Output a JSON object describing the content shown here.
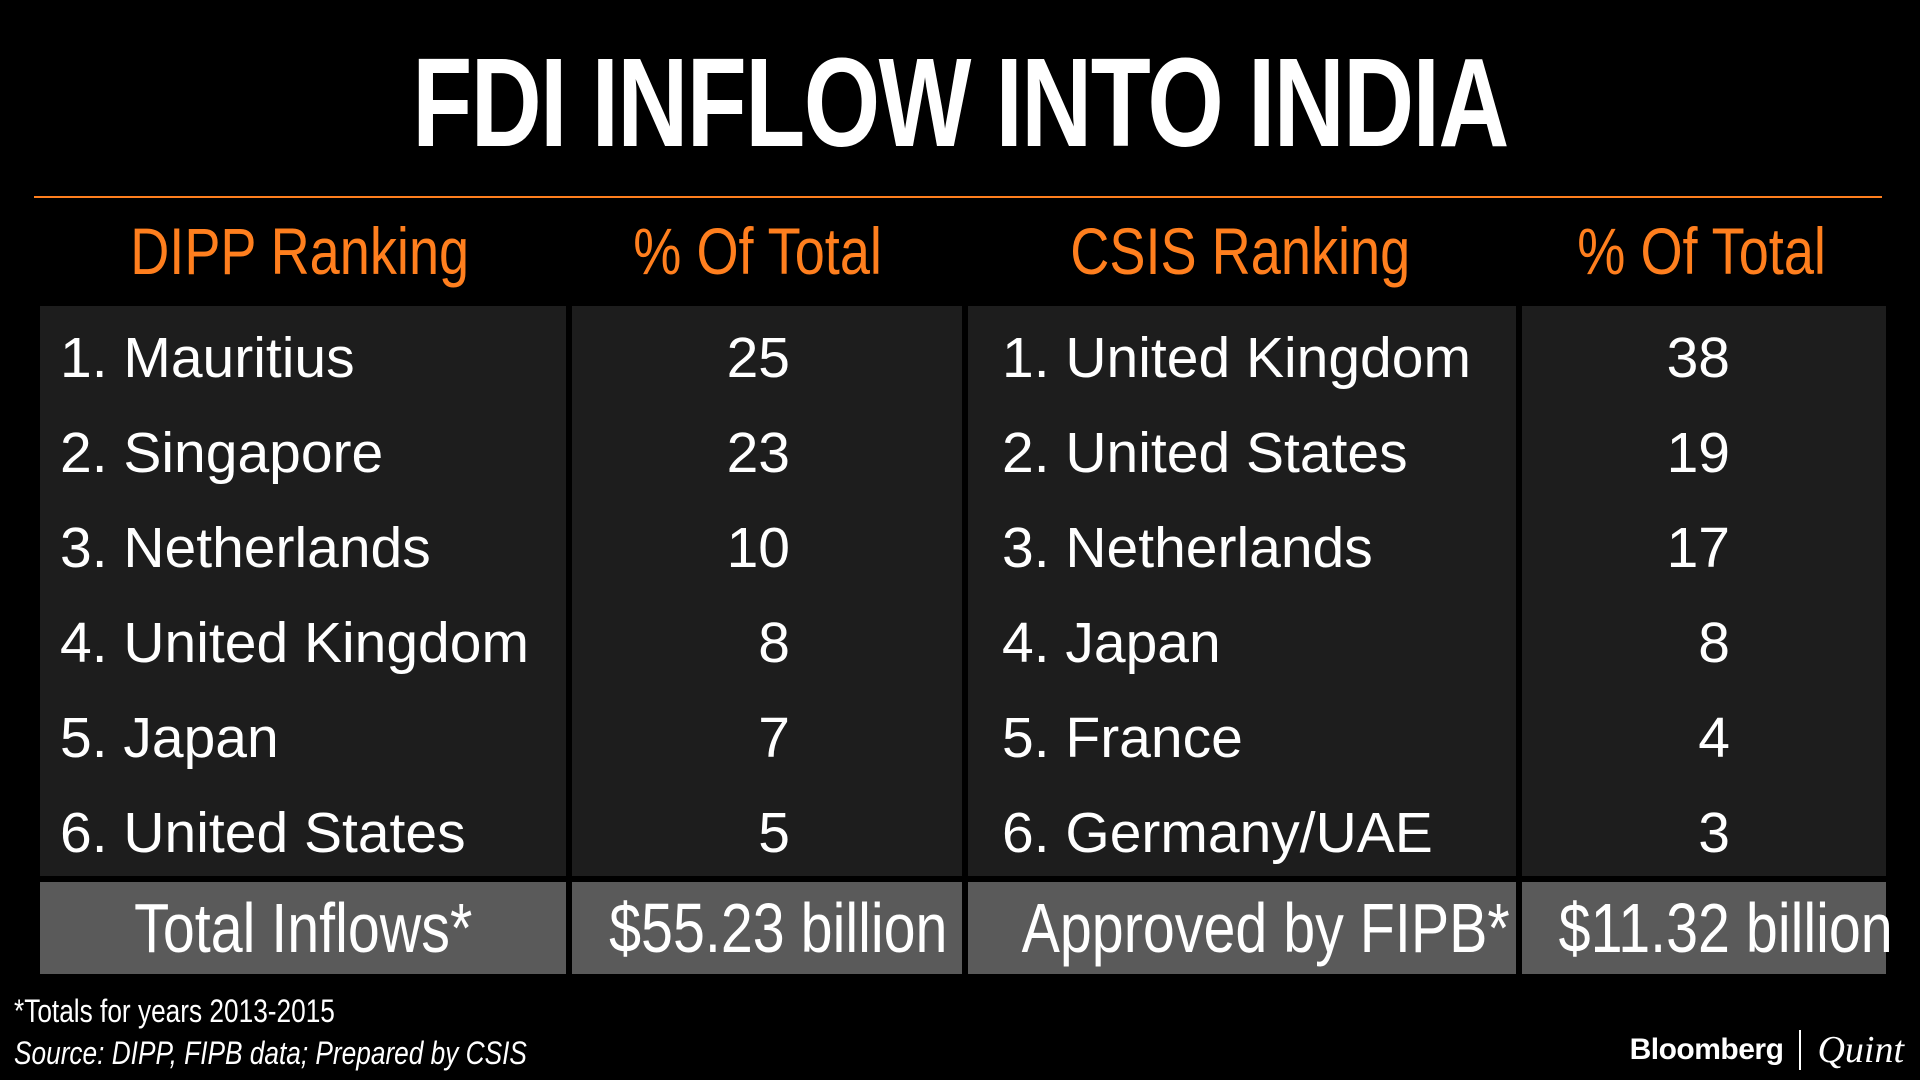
{
  "title": "FDI INFLOW INTO INDIA",
  "colors": {
    "accent": "#ff7f1e",
    "background": "#000000",
    "cell": "#1d1d1d",
    "total_cell": "#5a5a5a",
    "text": "#ffffff"
  },
  "chart_data": {
    "type": "table",
    "title": "FDI INFLOW INTO INDIA",
    "columns": [
      "DIPP Ranking",
      "% Of Total",
      "CSIS Ranking",
      "% Of Total"
    ],
    "dipp": [
      {
        "rank": "1. Mauritius",
        "pct": "25"
      },
      {
        "rank": "2. Singapore",
        "pct": "23"
      },
      {
        "rank": "3. Netherlands",
        "pct": "10"
      },
      {
        "rank": "4. United Kingdom",
        "pct": "8"
      },
      {
        "rank": "5. Japan",
        "pct": "7"
      },
      {
        "rank": "6. United States",
        "pct": "5"
      }
    ],
    "csis": [
      {
        "rank": "1. United Kingdom",
        "pct": "38"
      },
      {
        "rank": "2. United States",
        "pct": "19"
      },
      {
        "rank": "3. Netherlands",
        "pct": "17"
      },
      {
        "rank": "4. Japan",
        "pct": "8"
      },
      {
        "rank": "5. France",
        "pct": "4"
      },
      {
        "rank": "6. Germany/UAE",
        "pct": "3"
      }
    ],
    "totals": {
      "dipp_label": "Total Inflows*",
      "dipp_value": "$55.23 billion",
      "csis_label": "Approved by FIPB*",
      "csis_value": "$11.32 billion"
    }
  },
  "footnote": "*Totals for years 2013-2015",
  "source": "Source: DIPP, FIPB data; Prepared by CSIS",
  "brand": {
    "primary": "Bloomberg",
    "secondary": "Quint"
  }
}
